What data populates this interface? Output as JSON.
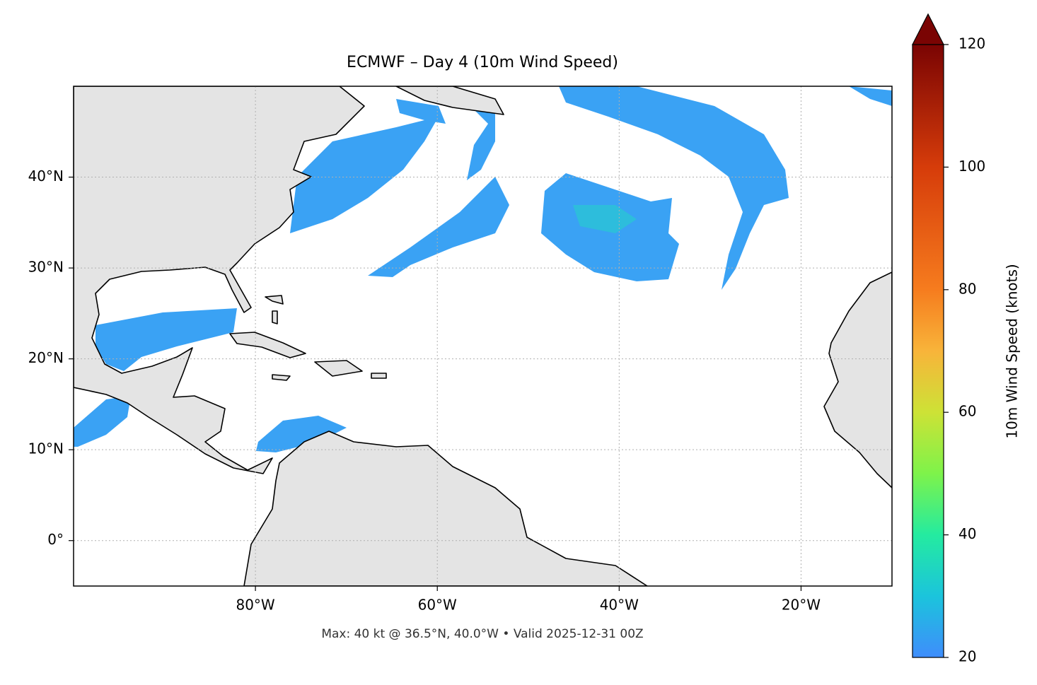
{
  "map": {
    "title": "ECMWF – Day 4 (10m Wind Speed)",
    "xlim": [
      -100,
      -10
    ],
    "ylim": [
      -5,
      50
    ],
    "xticks": [
      {
        "value": -80,
        "label": "80°W"
      },
      {
        "value": -60,
        "label": "60°W"
      },
      {
        "value": -40,
        "label": "40°W"
      },
      {
        "value": -20,
        "label": "20°W"
      }
    ],
    "yticks": [
      {
        "value": 0,
        "label": "0°"
      },
      {
        "value": 10,
        "label": "10°N"
      },
      {
        "value": 20,
        "label": "20°N"
      },
      {
        "value": 30,
        "label": "30°N"
      },
      {
        "value": 40,
        "label": "40°N"
      }
    ],
    "grid": true,
    "colorbar": {
      "label": "10m Wind Speed (knots)",
      "lim": [
        20,
        120
      ],
      "ticks": [
        20,
        40,
        60,
        80,
        100,
        120
      ]
    },
    "footer": "Max: 40 kt @ 36.5°N, 40.0°W • Valid 2025-12-31 00Z"
  }
}
